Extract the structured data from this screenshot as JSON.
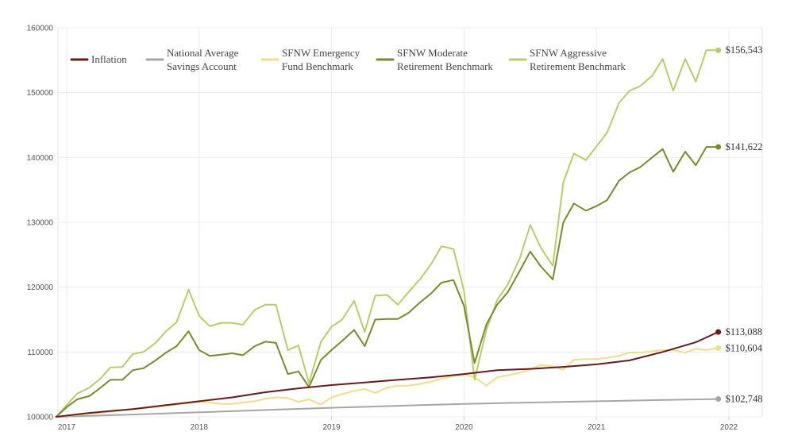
{
  "chart_data": {
    "type": "line",
    "title": "",
    "xlabel": "",
    "ylabel": "",
    "xlim": [
      2017.0,
      2022.0
    ],
    "ylim": [
      100000,
      160000
    ],
    "x_tick_labels": [
      "2017",
      "2018",
      "2019",
      "2020",
      "2021",
      "2022"
    ],
    "y_tick_labels": [
      "160000",
      "150000",
      "140000",
      "130000",
      "120000",
      "110000",
      "100000"
    ],
    "grid": true,
    "legend_position": "top",
    "series": [
      {
        "name": "Inflation",
        "legend_lines": [
          "Inflation"
        ],
        "color": "#6b1a1a",
        "end_label": "$113,088",
        "x": [
          2016.92,
          2017.17,
          2017.5,
          2017.75,
          2018.0,
          2018.25,
          2018.5,
          2018.75,
          2019.0,
          2019.25,
          2019.5,
          2019.75,
          2020.0,
          2020.25,
          2020.5,
          2020.75,
          2021.0,
          2021.25,
          2021.5,
          2021.75,
          2021.92
        ],
        "values": [
          100000,
          100600,
          101200,
          101800,
          102400,
          103000,
          103800,
          104400,
          104900,
          105300,
          105700,
          106100,
          106600,
          107200,
          107400,
          107700,
          108100,
          108700,
          110000,
          111500,
          113088
        ]
      },
      {
        "name": "National Average Savings Account",
        "legend_lines": [
          "National Average",
          "Savings Account"
        ],
        "color": "#a6a6a6",
        "end_label": "$102,748",
        "x": [
          2016.92,
          2017.5,
          2018.0,
          2018.5,
          2019.0,
          2019.5,
          2020.0,
          2020.5,
          2021.0,
          2021.5,
          2021.92
        ],
        "values": [
          100000,
          100350,
          100700,
          101050,
          101400,
          101700,
          102000,
          102200,
          102400,
          102600,
          102748
        ]
      },
      {
        "name": "SFNW Emergency Fund Benchmark",
        "legend_lines": [
          "SFNW Emergency",
          "Fund Benchmark"
        ],
        "color": "#f2dd8a",
        "end_label": "$110,604",
        "x": [
          2016.92,
          2017.0,
          2017.08,
          2017.17,
          2017.25,
          2017.33,
          2017.42,
          2017.5,
          2017.58,
          2017.67,
          2017.75,
          2017.83,
          2017.92,
          2018.0,
          2018.08,
          2018.17,
          2018.25,
          2018.33,
          2018.42,
          2018.5,
          2018.58,
          2018.67,
          2018.75,
          2018.83,
          2018.92,
          2019.0,
          2019.08,
          2019.17,
          2019.25,
          2019.33,
          2019.42,
          2019.5,
          2019.58,
          2019.67,
          2019.75,
          2019.83,
          2019.92,
          2020.0,
          2020.08,
          2020.17,
          2020.25,
          2020.33,
          2020.42,
          2020.5,
          2020.58,
          2020.67,
          2020.75,
          2020.83,
          2020.92,
          2021.0,
          2021.08,
          2021.17,
          2021.25,
          2021.33,
          2021.42,
          2021.5,
          2021.58,
          2021.67,
          2021.75,
          2021.83,
          2021.92
        ],
        "values": [
          100000,
          100150,
          100300,
          100450,
          100600,
          100800,
          101000,
          101200,
          101300,
          101500,
          101700,
          101900,
          102100,
          102300,
          102200,
          102000,
          102000,
          102200,
          102400,
          102800,
          103000,
          102900,
          102300,
          102700,
          101900,
          103000,
          103500,
          104000,
          104300,
          103700,
          104500,
          104800,
          104800,
          105100,
          105400,
          105900,
          106300,
          106500,
          106100,
          104800,
          106100,
          106400,
          106800,
          107300,
          108000,
          107800,
          107300,
          108800,
          108900,
          108900,
          109100,
          109400,
          109900,
          109900,
          110100,
          110300,
          110300,
          109900,
          110500,
          110300,
          110604
        ]
      },
      {
        "name": "SFNW Moderate Retirement Benchmark",
        "legend_lines": [
          "SFNW Moderate",
          "Retirement Benchmark"
        ],
        "color": "#7a8a2e",
        "end_label": "$141,622",
        "x": [
          2016.92,
          2017.0,
          2017.08,
          2017.17,
          2017.25,
          2017.33,
          2017.42,
          2017.5,
          2017.58,
          2017.67,
          2017.75,
          2017.83,
          2017.92,
          2018.0,
          2018.08,
          2018.17,
          2018.25,
          2018.33,
          2018.42,
          2018.5,
          2018.58,
          2018.67,
          2018.75,
          2018.83,
          2018.92,
          2019.0,
          2019.08,
          2019.17,
          2019.25,
          2019.33,
          2019.42,
          2019.5,
          2019.58,
          2019.67,
          2019.75,
          2019.83,
          2019.92,
          2020.0,
          2020.08,
          2020.17,
          2020.25,
          2020.33,
          2020.42,
          2020.5,
          2020.58,
          2020.67,
          2020.75,
          2020.83,
          2020.92,
          2021.0,
          2021.08,
          2021.17,
          2021.25,
          2021.33,
          2021.42,
          2021.5,
          2021.58,
          2021.67,
          2021.75,
          2021.83,
          2021.92
        ],
        "values": [
          100000,
          101500,
          102700,
          103200,
          104400,
          105700,
          105700,
          107200,
          107500,
          108700,
          109900,
          110900,
          113200,
          110300,
          109400,
          109600,
          109800,
          109500,
          110900,
          111600,
          111400,
          106600,
          107000,
          104600,
          108800,
          110300,
          111700,
          113400,
          110900,
          115000,
          115100,
          115100,
          116000,
          117700,
          119000,
          120700,
          121100,
          117100,
          108300,
          114300,
          117300,
          119200,
          122500,
          125500,
          123200,
          121200,
          130000,
          132900,
          131800,
          132500,
          133400,
          136400,
          137700,
          138500,
          140000,
          141300,
          137800,
          140900,
          138800,
          141622,
          141622
        ]
      },
      {
        "name": "SFNW Aggressive Retirement Benchmark",
        "legend_lines": [
          "SFNW Aggressive",
          "Retirement Benchmark"
        ],
        "color": "#bccb6a",
        "end_label": "$156,543",
        "x": [
          2016.92,
          2017.0,
          2017.08,
          2017.17,
          2017.25,
          2017.33,
          2017.42,
          2017.5,
          2017.58,
          2017.67,
          2017.75,
          2017.83,
          2017.92,
          2018.0,
          2018.08,
          2018.17,
          2018.25,
          2018.33,
          2018.42,
          2018.5,
          2018.58,
          2018.67,
          2018.75,
          2018.83,
          2018.92,
          2019.0,
          2019.08,
          2019.17,
          2019.25,
          2019.33,
          2019.42,
          2019.5,
          2019.58,
          2019.67,
          2019.75,
          2019.83,
          2019.92,
          2020.0,
          2020.08,
          2020.17,
          2020.25,
          2020.33,
          2020.42,
          2020.5,
          2020.58,
          2020.67,
          2020.75,
          2020.83,
          2020.92,
          2021.0,
          2021.08,
          2021.17,
          2021.25,
          2021.33,
          2021.42,
          2021.5,
          2021.58,
          2021.67,
          2021.75,
          2021.83,
          2021.92
        ],
        "values": [
          100000,
          101800,
          103600,
          104500,
          105800,
          107600,
          107700,
          109700,
          110000,
          111400,
          113200,
          114600,
          119600,
          115600,
          114000,
          114500,
          114500,
          114200,
          116500,
          117300,
          117300,
          110300,
          111000,
          105200,
          111600,
          113900,
          115000,
          117900,
          113100,
          118700,
          118800,
          117300,
          119200,
          121300,
          123500,
          126300,
          125900,
          119400,
          105700,
          113500,
          118000,
          120400,
          124400,
          129600,
          126100,
          123300,
          136200,
          140600,
          139600,
          141700,
          143800,
          148400,
          150300,
          151000,
          152600,
          155200,
          150300,
          155200,
          151700,
          156543,
          156543
        ]
      }
    ]
  }
}
